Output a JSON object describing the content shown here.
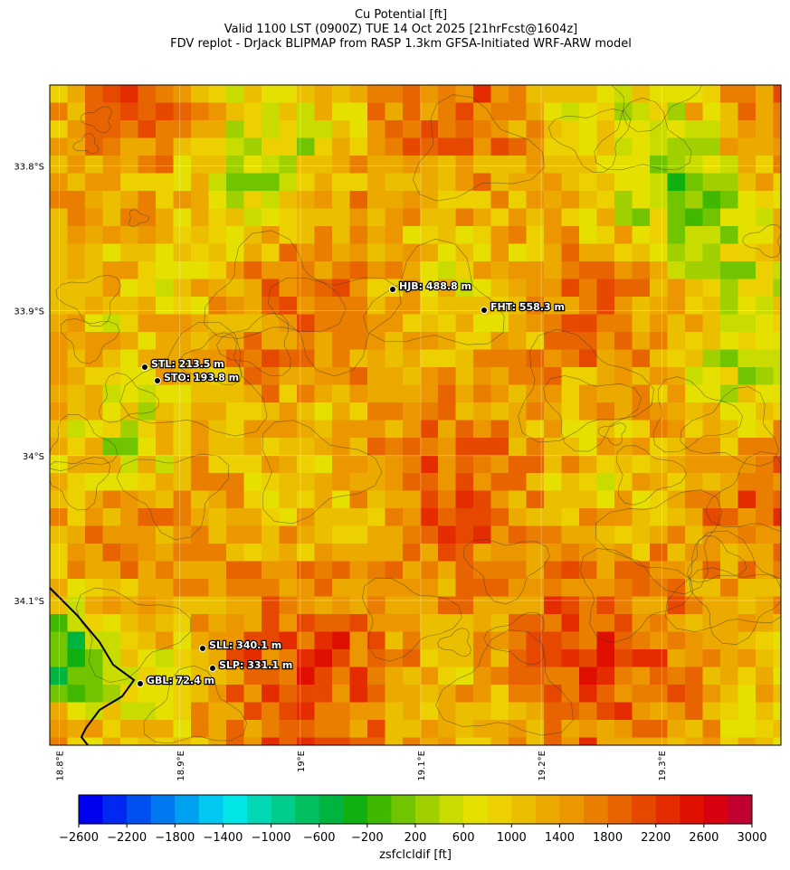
{
  "title": [
    "Cu Potential [ft]",
    "Valid 1100 LST (0900Z) TUE 14 Oct 2025 [21hrFcst@1604z]",
    "FDV replot - DrJack BLIPMAP from RASP 1.3km GFSA-Initiated WRF-ARW model"
  ],
  "map": {
    "xlim": [
      18.792,
      19.399
    ],
    "ylim": [
      -33.744,
      -34.2
    ],
    "xticks": [
      {
        "value": 18.8,
        "label": "18.8°E"
      },
      {
        "value": 18.9,
        "label": "18.9°E"
      },
      {
        "value": 19.0,
        "label": "19°E"
      },
      {
        "value": 19.1,
        "label": "19.1°E"
      },
      {
        "value": 19.2,
        "label": "19.2°E"
      },
      {
        "value": 19.3,
        "label": "19.3°E"
      }
    ],
    "yticks": [
      {
        "value": -33.8,
        "label": "33.8°S"
      },
      {
        "value": -33.9,
        "label": "33.9°S"
      },
      {
        "value": -34.0,
        "label": "34°S"
      },
      {
        "value": -34.1,
        "label": "34.1°S"
      }
    ],
    "stations": [
      "STL: 213.5 m",
      "STO: 193.8 m",
      "HJB: 488.8 m",
      "FHT: 558.3 m",
      "SLL: 340.1 m",
      "SLP: 331.1 m",
      "GBL: 72.4 m"
    ]
  },
  "colorbar": {
    "label": "zsfclcldif [ft]",
    "lim": [
      -2600,
      3000
    ],
    "ticks": [
      {
        "value": -2600,
        "label": "−2600"
      },
      {
        "value": -2200,
        "label": "−2200"
      },
      {
        "value": -1800,
        "label": "−1800"
      },
      {
        "value": -1400,
        "label": "−1400"
      },
      {
        "value": -1000,
        "label": "−1000"
      },
      {
        "value": -600,
        "label": "−600"
      },
      {
        "value": -200,
        "label": "−200"
      },
      200,
      600,
      1000,
      1400,
      1800,
      2200,
      2600,
      3000
    ],
    "colors": [
      "#0000f0",
      "#0028f0",
      "#0050f0",
      "#0078f0",
      "#00a0f0",
      "#00c8f0",
      "#00e6e6",
      "#00d8b4",
      "#00cc8c",
      "#00c060",
      "#00b440",
      "#10b010",
      "#40b800",
      "#70c400",
      "#a0d000",
      "#c8dc00",
      "#e6e000",
      "#ecd000",
      "#ecbe00",
      "#ecaa00",
      "#ec9600",
      "#ea7e00",
      "#e86400",
      "#e64800",
      "#e42c00",
      "#e01000",
      "#d80010",
      "#c00030"
    ]
  }
}
